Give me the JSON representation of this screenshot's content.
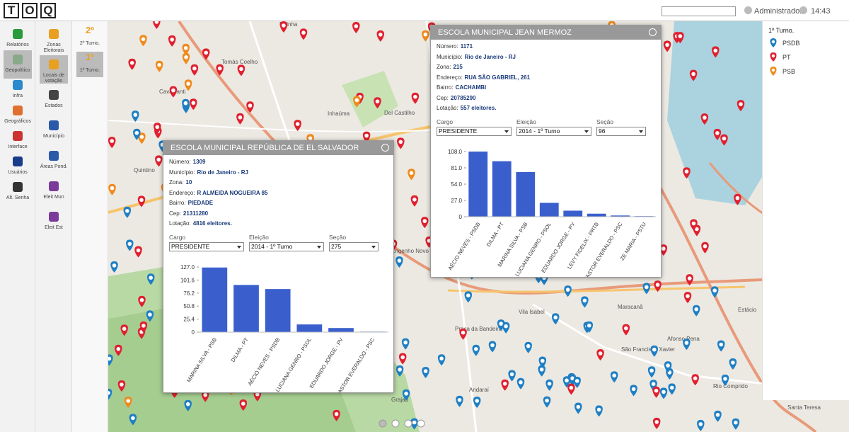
{
  "header": {
    "logo": [
      "T",
      "O",
      "Q"
    ],
    "user": "Administrador",
    "time": "14:43"
  },
  "menu": [
    "Relatórios",
    "Geopolítico",
    "Infra",
    "Geográficos",
    "Interface",
    "Usuários",
    "Alt. Senha"
  ],
  "submenu": [
    "Zonas Eleitorais",
    "Locais de votação",
    "Estados",
    "Município",
    "Áreas Pond.",
    "Eleit Mun",
    "Eleit Est"
  ],
  "rounds": [
    {
      "icon": "2º",
      "label": "2º Turno."
    },
    {
      "icon": "1º",
      "label": "1º Turno."
    }
  ],
  "legend": {
    "title": "1º Turno.",
    "items": [
      {
        "name": "PSDB",
        "color": "#1f7fc4"
      },
      {
        "name": "PT",
        "color": "#e0202f"
      },
      {
        "name": "PSB",
        "color": "#f08a1d"
      }
    ]
  },
  "map_labels": [
    "Rainha",
    "Cavalcanti",
    "Tomás Coelho",
    "Inhaúma",
    "Del Castilho",
    "Quintino",
    "Engenho Novo",
    "Vila Isabel",
    "Maracanã",
    "Andaraí",
    "Grajaú",
    "Praça da Bandeira",
    "Rio Comprido",
    "Santa Teresa",
    "Estácio",
    "São Francisco Xavier",
    "Afonso Pena"
  ],
  "popups": [
    {
      "title": "ESCOLA MUNICIPAL REPÚBLICA DE EL SALVADOR",
      "fields": [
        {
          "label": "Número:",
          "value": "1309"
        },
        {
          "label": "Município:",
          "value": "Rio de Janeiro - RJ"
        },
        {
          "label": "Zona:",
          "value": "10"
        },
        {
          "label": "Endereço:",
          "value": "R ALMEIDA NOGUEIRA 85"
        },
        {
          "label": "Bairro:",
          "value": "PIEDADE"
        },
        {
          "label": "Cep:",
          "value": "21311280"
        },
        {
          "label": "Lotação:",
          "value": "4816 eleitores."
        }
      ],
      "selects": [
        {
          "label": "Cargo",
          "value": "PRESIDENTE"
        },
        {
          "label": "Eleição",
          "value": "2014 - 1º Turno"
        },
        {
          "label": "Seção",
          "value": "275"
        }
      ],
      "chart": {
        "type": "bar",
        "color": "#3a5fcd",
        "categories": [
          "MARINA SILVA - PSB",
          "DILMA - PT",
          "AÉCIO NEVES - PSDB",
          "LUCIANA GENRO - PSOL",
          "EDUARDO JORGE - PV",
          "PASTOR EVERALDO - PSC"
        ],
        "values": [
          126,
          92,
          84,
          15,
          8,
          1
        ],
        "ylim": [
          0,
          127
        ],
        "yticks": [
          0,
          25.4,
          50.8,
          76.2,
          101.6,
          {
            "value": 127,
            "label": "127.0"
          }
        ]
      }
    },
    {
      "title": "ESCOLA MUNICIPAL JEAN MERMOZ",
      "fields": [
        {
          "label": "Número:",
          "value": "1171"
        },
        {
          "label": "Município:",
          "value": "Rio de Janeiro - RJ"
        },
        {
          "label": "Zona:",
          "value": "215"
        },
        {
          "label": "Endereço:",
          "value": "RUA SÃO GABRIEL, 261"
        },
        {
          "label": "Bairro:",
          "value": "CACHAMBI"
        },
        {
          "label": "Cep:",
          "value": "20785290"
        },
        {
          "label": "Lotação:",
          "value": "557 eleitores."
        }
      ],
      "selects": [
        {
          "label": "Cargo",
          "value": "PRESIDENTE"
        },
        {
          "label": "Eleição",
          "value": "2014 - 1º Turno"
        },
        {
          "label": "Seção",
          "value": "96"
        }
      ],
      "chart": {
        "type": "bar",
        "color": "#3a5fcd",
        "categories": [
          "AÉCIO NEVES - PSDB",
          "DILMA - PT",
          "MARINA SILVA - PSB",
          "LUCIANA GENRO - PSOL",
          "EDUARDO JORGE - PV",
          "LEVY FIDELIX - PRTB",
          "PASTOR EVERALDO - PSC",
          "ZE MARIA - PSTU"
        ],
        "values": [
          108,
          92,
          74,
          23,
          10,
          5,
          2,
          1
        ],
        "ylim": [
          0,
          108
        ],
        "yticks": [
          0,
          {
            "value": 27,
            "label": "27.0"
          },
          {
            "value": 54,
            "label": "54.0"
          },
          {
            "value": 81,
            "label": "81.0"
          },
          {
            "value": 108,
            "label": "108.0"
          }
        ]
      }
    }
  ]
}
